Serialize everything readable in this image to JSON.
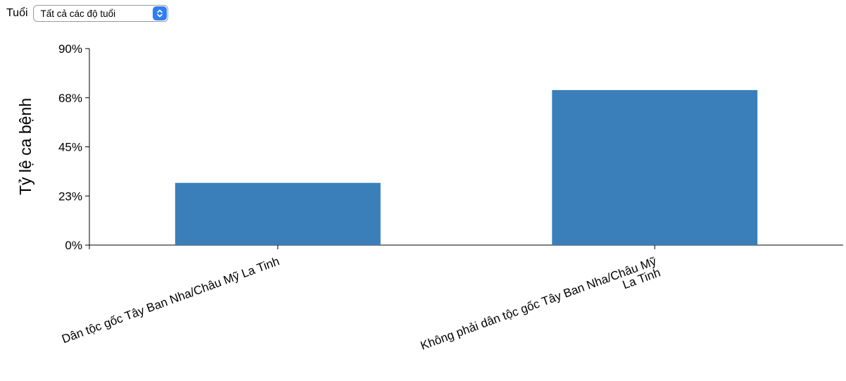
{
  "filter": {
    "label": "Tuổi",
    "selected": "Tất cả các độ tuổi"
  },
  "icons": {
    "select_arrow": "up-down-chevron-icon"
  },
  "colors": {
    "bar": "#3a7fb9",
    "select_accent": "#2f7ef2"
  },
  "chart_data": {
    "type": "bar",
    "ylabel": "Tỷ lệ ca bệnh",
    "xlabel": "",
    "ylim": [
      0,
      0.9
    ],
    "yticks": [
      0,
      0.225,
      0.45,
      0.675,
      0.9
    ],
    "ytick_labels": [
      "0%",
      "23%",
      "45%",
      "68%",
      "90%"
    ],
    "categories": [
      "Dân tộc gốc Tây Ban Nha/Châu Mỹ La Tinh",
      "Không phải dân tộc gốc Tây Ban Nha/Châu Mỹ La Tinh"
    ],
    "category_label_lines": [
      [
        "Dân tộc gốc Tây Ban Nha/Châu Mỹ La Tinh"
      ],
      [
        "Không phải dân tộc gốc Tây Ban Nha/Châu Mỹ",
        "La Tinh"
      ]
    ],
    "values": [
      0.285,
      0.71
    ],
    "grid": false,
    "legend": "none"
  }
}
